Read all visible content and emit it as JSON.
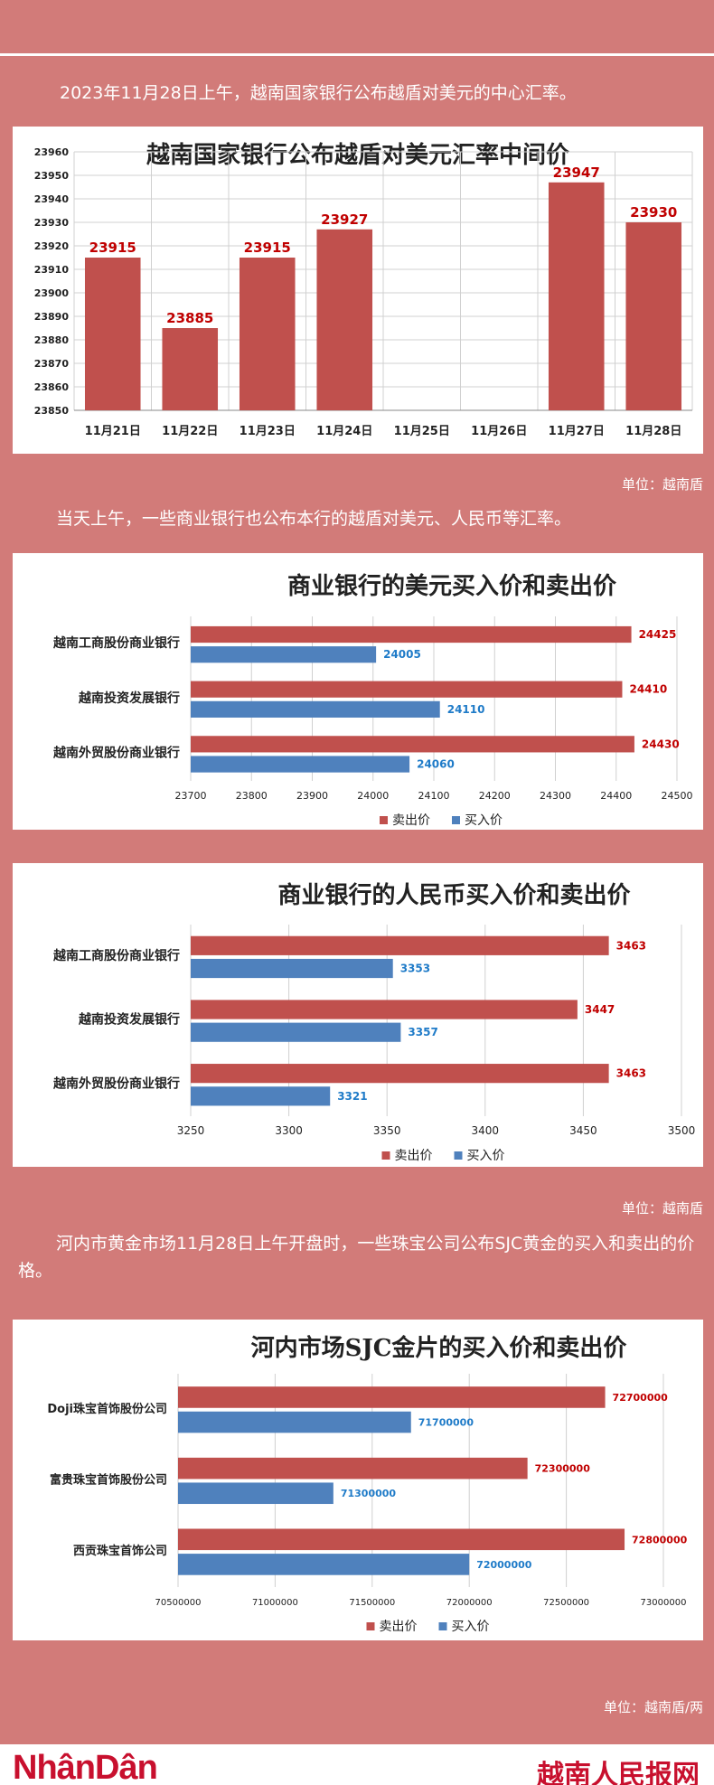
{
  "intro": "2023年11月28日上午，越南国家银行公布越盾对美元的中心汇率。",
  "unit1": "单位：越南盾",
  "text2": "当天上午，一些商业银行也公布本行的越盾对美元、人民币等汇率。",
  "unit2": "单位：越南盾",
  "text3": "河内市黄金市场11月28日上午开盘时，一些珠宝公司公布SJC黄金的买入和卖出的价格。",
  "unit3": "单位：越南盾/两",
  "logo_left": "NhânDân",
  "logo_right": "越南人民报网",
  "colors": {
    "red": "#c0504d",
    "blue": "#4f81bd",
    "dark_red": "#c00000",
    "blue_label": "#1f7bc8"
  },
  "chart_data": [
    {
      "type": "bar",
      "title": "越南国家银行公布越盾对美元汇率中间价",
      "categories": [
        "11月21日",
        "11月22日",
        "11月23日",
        "11月24日",
        "11月25日",
        "11月26日",
        "11月27日",
        "11月28日"
      ],
      "values": [
        23915,
        23885,
        23915,
        23927,
        null,
        null,
        23947,
        23930
      ],
      "value_labels": [
        "23915",
        "23885",
        "23915",
        "23927",
        "",
        "",
        "23947",
        "23930"
      ],
      "yticks": [
        "23850",
        "23860",
        "23870",
        "23880",
        "23890",
        "23900",
        "23910",
        "23920",
        "23930",
        "23940",
        "23950",
        "23960"
      ],
      "ylim": [
        23850,
        23960
      ],
      "grid": true
    },
    {
      "type": "bar",
      "orientation": "horizontal",
      "title": "商业银行的美元买入价和卖出价",
      "categories": [
        "越南工商股份商业银行",
        "越南投资发展银行",
        "越南外贸股份商业银行"
      ],
      "series": [
        {
          "name": "卖出价",
          "values": [
            24425,
            24410,
            24430
          ],
          "labels": [
            "24425",
            "24410",
            "24430"
          ]
        },
        {
          "name": "买入价",
          "values": [
            24005,
            24110,
            24060
          ],
          "labels": [
            "24005",
            "24110",
            "24060"
          ]
        }
      ],
      "xticks": [
        "23700",
        "23800",
        "23900",
        "24000",
        "24100",
        "24200",
        "24300",
        "24400",
        "24500"
      ],
      "xlim": [
        23700,
        24500
      ],
      "legend": "bottom"
    },
    {
      "type": "bar",
      "orientation": "horizontal",
      "title": "商业银行的人民币买入价和卖出价",
      "categories": [
        "越南工商股份商业银行",
        "越南投资发展银行",
        "越南外贸股份商业银行"
      ],
      "series": [
        {
          "name": "卖出价",
          "values": [
            3463,
            3447,
            3463
          ],
          "labels": [
            "3463",
            "3447",
            "3463"
          ]
        },
        {
          "name": "买入价",
          "values": [
            3353,
            3357,
            3321
          ],
          "labels": [
            "3353",
            "3357",
            "3321"
          ]
        }
      ],
      "xticks": [
        "3250",
        "3300",
        "3350",
        "3400",
        "3450",
        "3500"
      ],
      "xlim": [
        3250,
        3500
      ],
      "legend": "bottom"
    },
    {
      "type": "bar",
      "orientation": "horizontal",
      "title": "河内市场SJC金片的买入价和卖出价",
      "categories": [
        "Doji珠宝首饰股份公司",
        "富贵珠宝首饰股份公司",
        "西贡珠宝首饰公司"
      ],
      "series": [
        {
          "name": "卖出价",
          "values": [
            72700000,
            72300000,
            72800000
          ],
          "labels": [
            "72700000",
            "72300000",
            "72800000"
          ]
        },
        {
          "name": "买入价",
          "values": [
            71700000,
            71300000,
            72000000
          ],
          "labels": [
            "71700000",
            "71300000",
            "72000000"
          ]
        }
      ],
      "xticks": [
        "70500000",
        "71000000",
        "71500000",
        "72000000",
        "72500000",
        "73000000"
      ],
      "xlim": [
        70500000,
        73000000
      ],
      "legend": "bottom"
    }
  ]
}
